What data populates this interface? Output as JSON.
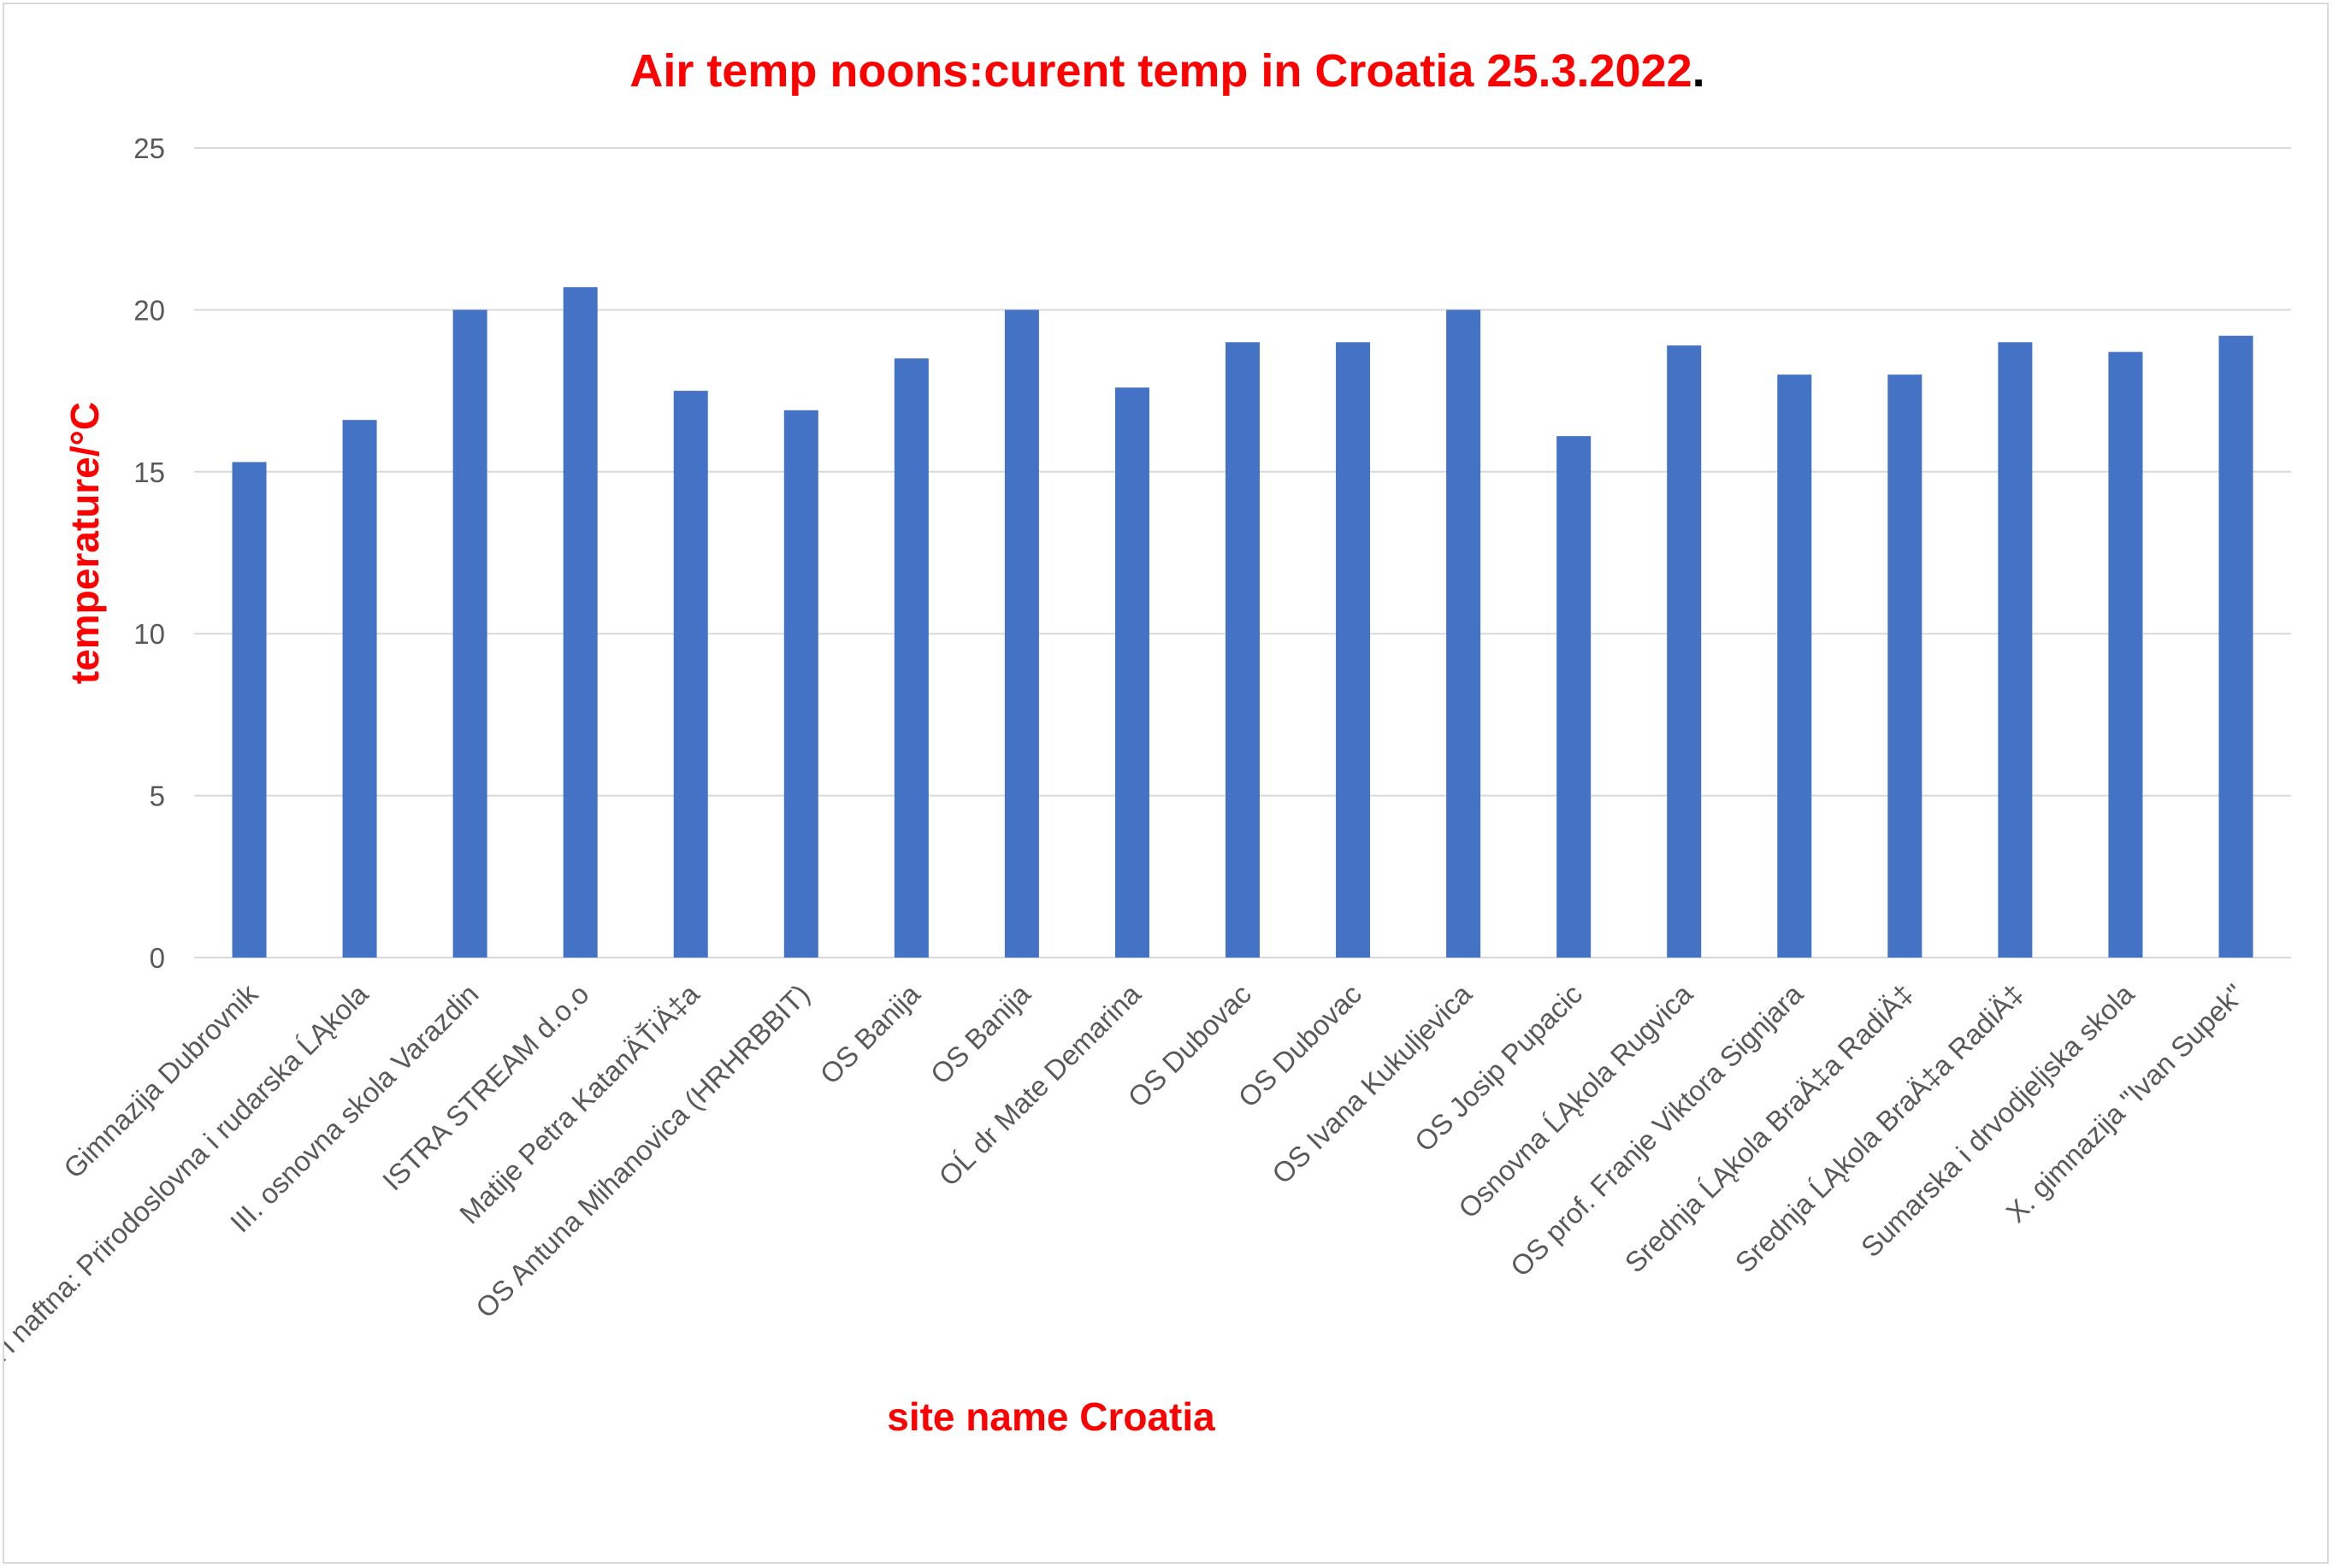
{
  "chart_data": {
    "type": "bar",
    "title": "Air temp noons:curent temp in Croatia 25.3.2022",
    "title_suffix": ".",
    "xlabel": "site name Croatia",
    "ylabel": "temperature/°C",
    "ylim": [
      0,
      25
    ],
    "yticks": [
      "0",
      "5",
      "10",
      "15",
      "20",
      "25"
    ],
    "grid": true,
    "legend": "none",
    "categories": [
      "Gimnazija Dubrovnik",
      "Geodetska, rudarska i naftna: Prirodoslovna i rudarska ĹĄkola",
      "III. osnovna skola Varazdin",
      "ISTRA STREAM d.o.o",
      "Matije Petra KatanÄŤiÄ‡a",
      "OS Antuna Mihanovica (HRHRBBIT)",
      "OS Banija",
      "OS Banija",
      "OĹ  dr Mate Demarina",
      "OS Dubovac",
      "OS Dubovac",
      "OS Ivana Kukuljevica",
      "OS Josip Pupacic",
      "Osnovna ĹĄkola Rugvica",
      "OS prof. Franje Viktora Signjara",
      "Srednja ĹĄkola BraÄ‡a RadiÄ‡",
      "Srednja ĹĄkola BraÄ‡a RadiÄ‡",
      "Sumarska i drvodjeljska skola",
      "X. gimnazija \"Ivan Supek\""
    ],
    "values": [
      15.3,
      16.6,
      20.0,
      20.7,
      17.5,
      16.9,
      18.5,
      20.0,
      17.6,
      19.0,
      19.0,
      20.0,
      16.1,
      18.9,
      18.0,
      18.0,
      19.0,
      18.7,
      19.2
    ]
  },
  "colors": {
    "bar": "#4472c4",
    "title": "#ff0000",
    "axis_title": "#ff0000",
    "title_suffix": "#000000",
    "gridline": "#d9d9d9",
    "tick_text": "#595959"
  }
}
